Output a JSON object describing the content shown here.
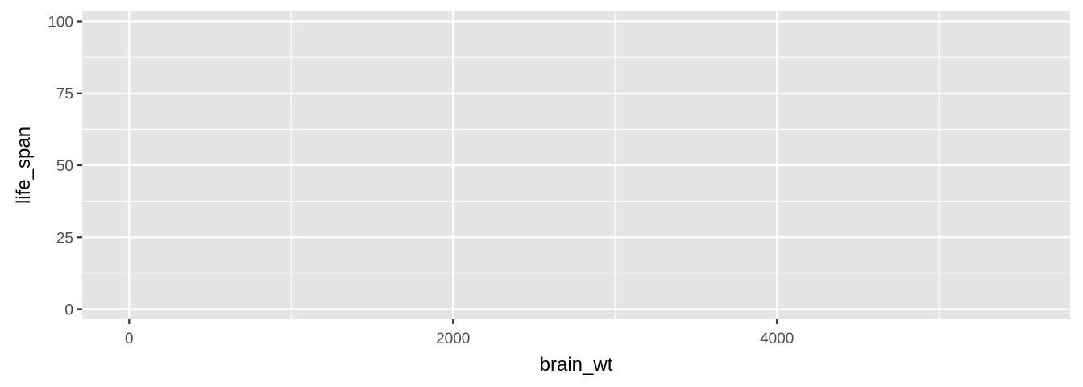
{
  "chart_data": {
    "type": "scatter",
    "title": "",
    "xlabel": "brain_wt",
    "ylabel": "life_span",
    "x": [],
    "y": [],
    "xlim": [
      -290,
      5810
    ],
    "ylim": [
      -3.5,
      103.5
    ],
    "x_ticks": [
      0,
      2000,
      4000
    ],
    "x_minor_ticks": [
      1000,
      3000,
      5000
    ],
    "y_ticks": [
      0,
      25,
      50,
      75,
      100
    ],
    "y_minor_ticks": [
      12.5,
      37.5,
      62.5,
      87.5
    ],
    "grid": true,
    "panel_background": "#e5e5e5",
    "grid_color": "#ffffff",
    "tick_label_color": "#4d4d4d",
    "tick_mark_color": "#333333",
    "axis_title_color": "#000000"
  }
}
